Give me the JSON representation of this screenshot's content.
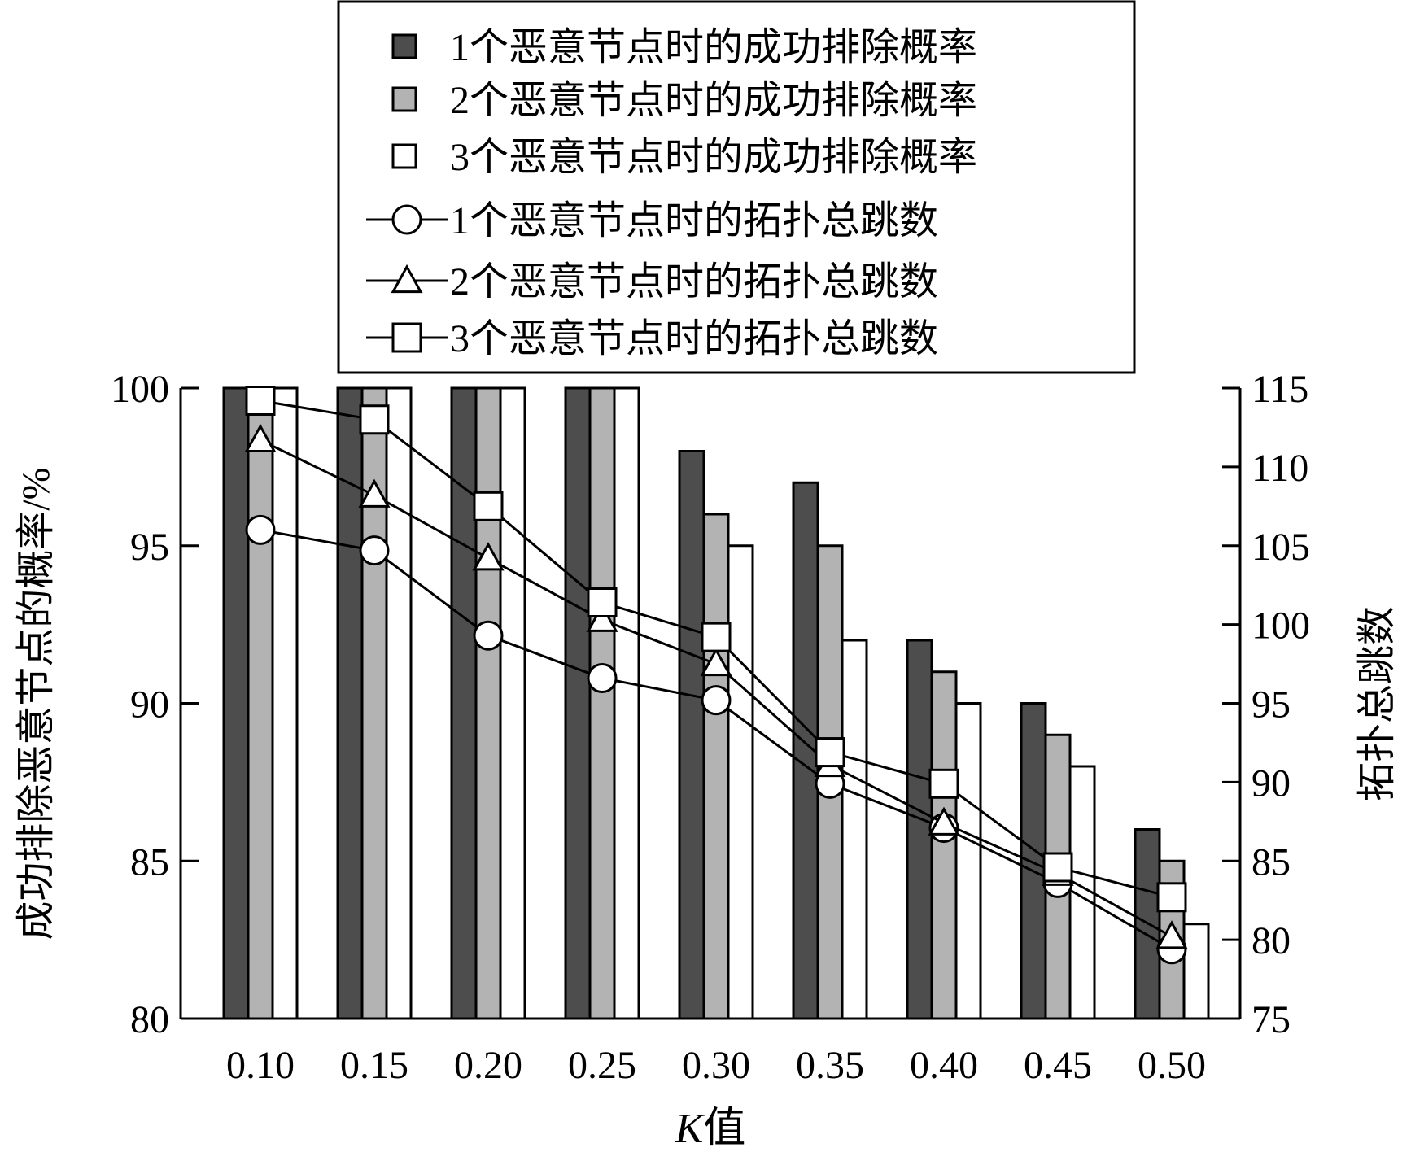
{
  "chart_data": {
    "type": "bar",
    "categories": [
      "0.10",
      "0.15",
      "0.20",
      "0.25",
      "0.30",
      "0.35",
      "0.40",
      "0.45",
      "0.50"
    ],
    "xlabel_italic": "K",
    "xlabel_rest": "值",
    "ylabel_left": "成功排除恶意节点的概率/%",
    "ylabel_right": "拓扑总跳数",
    "ylim_left": [
      80,
      100
    ],
    "ylim_right": [
      75,
      115
    ],
    "yticks_left": [
      80,
      85,
      90,
      95,
      100
    ],
    "yticks_right": [
      75,
      80,
      85,
      90,
      95,
      100,
      105,
      110,
      115
    ],
    "bar_series": [
      {
        "name": "1个恶意节点时的成功排除概率",
        "color": "#4d4d4d",
        "values": [
          100,
          100,
          100,
          100,
          98,
          97,
          92,
          90,
          86
        ]
      },
      {
        "name": "2个恶意节点时的成功排除概率",
        "color": "#b3b3b3",
        "values": [
          100,
          100,
          100,
          100,
          96,
          95,
          91,
          89,
          85
        ]
      },
      {
        "name": "3个恶意节点时的成功排除概率",
        "color": "#ffffff",
        "values": [
          100,
          100,
          100,
          100,
          95,
          92,
          90,
          88,
          83
        ]
      }
    ],
    "line_series": [
      {
        "name": "1个恶意节点时的拓扑总跳数",
        "marker": "circle",
        "values": [
          106,
          104.7,
          99.3,
          96.6,
          95.2,
          89.9,
          87.1,
          83.6,
          79.4
        ]
      },
      {
        "name": "2个恶意节点时的拓扑总跳数",
        "marker": "triangle",
        "values": [
          111.7,
          108.2,
          104.2,
          100.3,
          97.5,
          91.1,
          87.4,
          84.2,
          80.2
        ]
      },
      {
        "name": "3个恶意节点时的拓扑总跳数",
        "marker": "square",
        "values": [
          114.2,
          113,
          107.5,
          101.4,
          99.2,
          91.9,
          89.9,
          84.6,
          82.7
        ]
      }
    ],
    "legend_position": "top-center",
    "grid": false
  }
}
